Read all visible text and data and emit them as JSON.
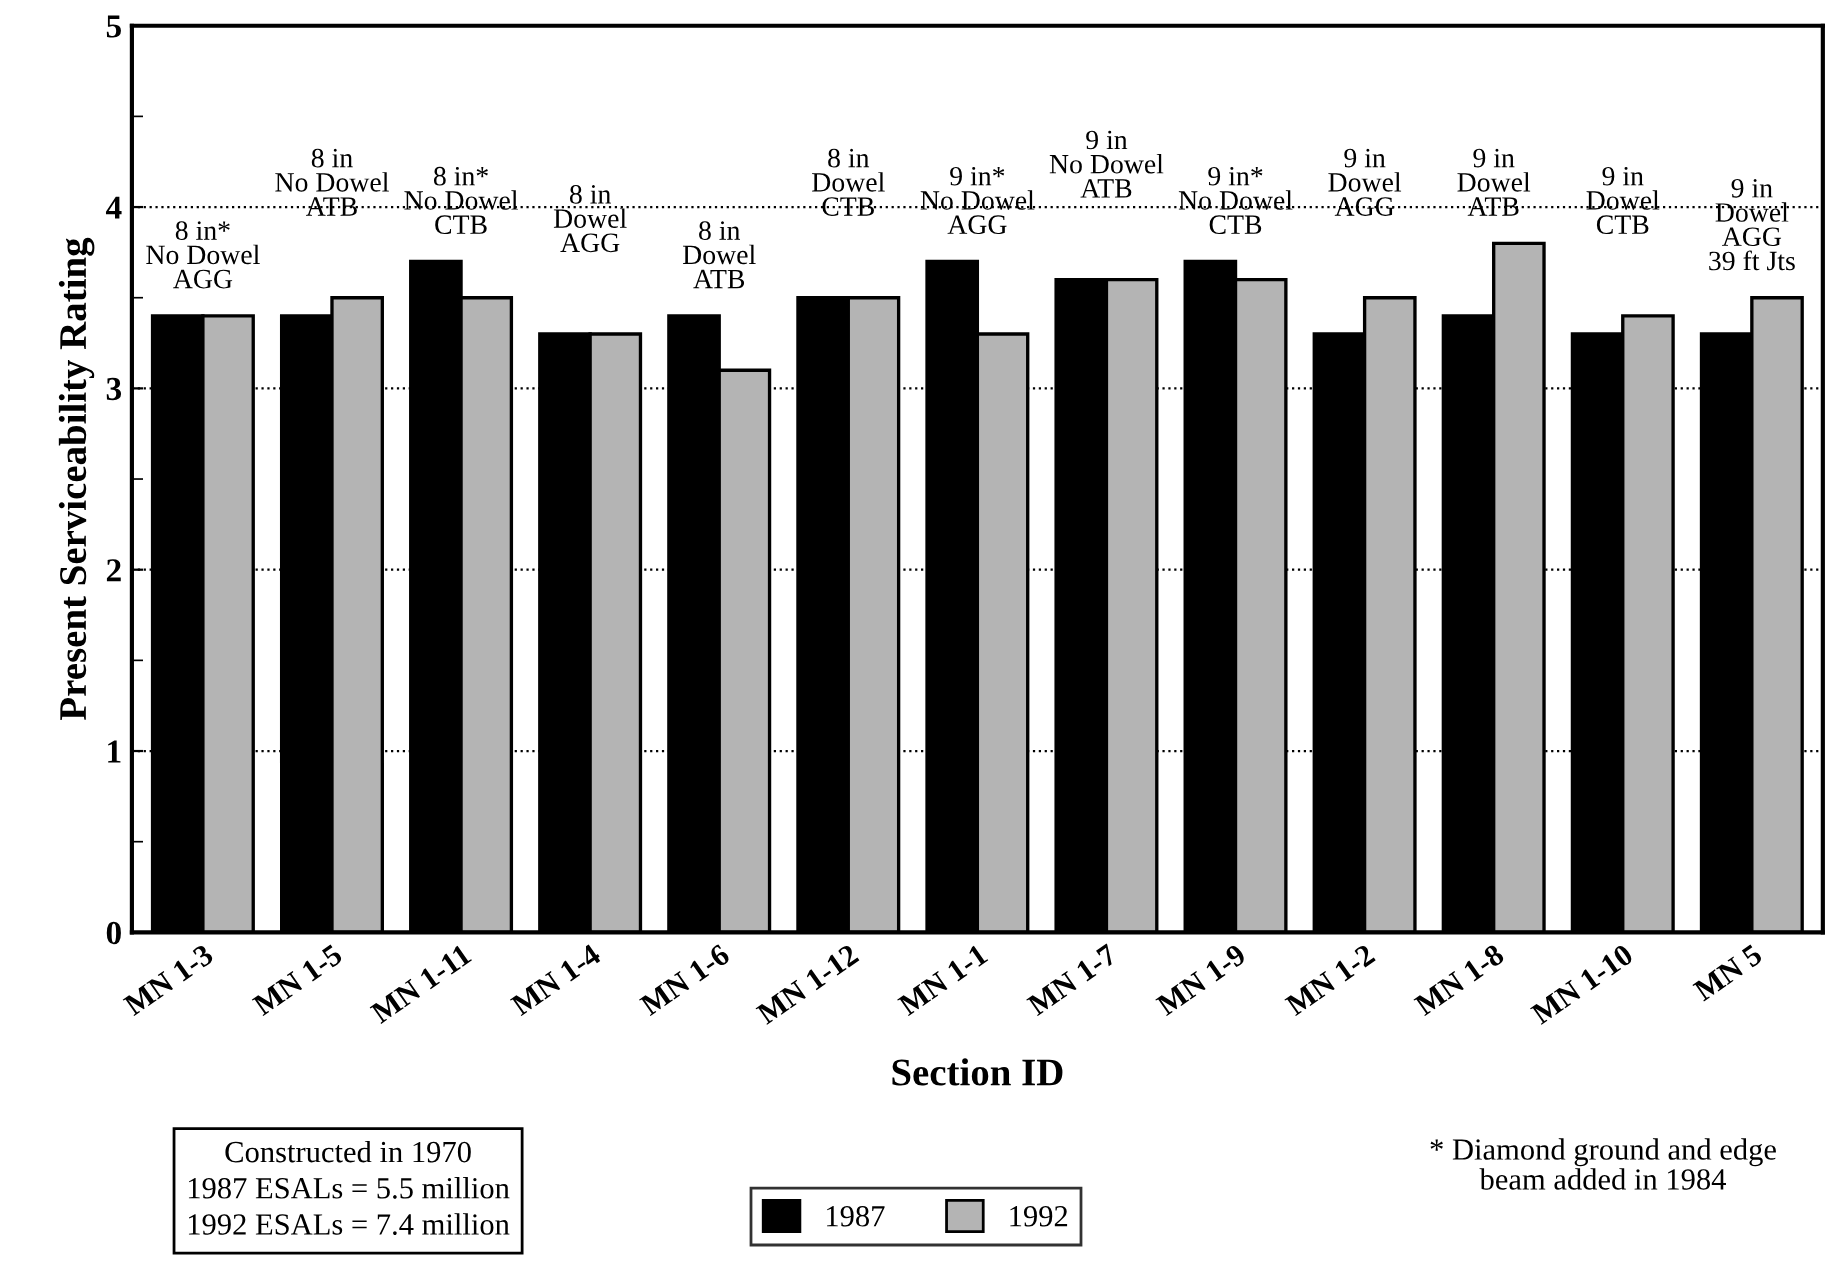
{
  "chart_data": {
    "type": "bar",
    "xlabel": "Section ID",
    "ylabel": "Present Serviceability Rating",
    "categories": [
      "MN 1-3",
      "MN 1-5",
      "MN 1-11",
      "MN 1-4",
      "MN 1-6",
      "MN 1-12",
      "MN 1-1",
      "MN 1-7",
      "MN 1-9",
      "MN 1-2",
      "MN 1-8",
      "MN 1-10",
      "MN 5"
    ],
    "series": [
      {
        "name": "1987",
        "color": "#000000",
        "values": [
          3.4,
          3.4,
          3.7,
          3.3,
          3.4,
          3.5,
          3.7,
          3.6,
          3.7,
          3.3,
          3.4,
          3.3,
          3.3
        ]
      },
      {
        "name": "1992",
        "color": "#b4b4b4",
        "values": [
          3.4,
          3.5,
          3.5,
          3.3,
          3.1,
          3.5,
          3.3,
          3.6,
          3.6,
          3.5,
          3.8,
          3.4,
          3.5
        ]
      }
    ],
    "ylim": [
      0,
      5
    ],
    "yticks": [
      0,
      {
        "value": 0.5,
        "label": null
      },
      1,
      {
        "value": 1.5,
        "label": null
      },
      2,
      {
        "value": 2.5,
        "label": null
      },
      3,
      {
        "value": 3.5,
        "label": null
      },
      4,
      {
        "value": 4.5,
        "label": null
      },
      5
    ],
    "grid": "y",
    "legend": "bottom",
    "annotations": [
      {
        "text": "8 in*\nNo Dowel\nAGG",
        "x": "MN 1-3",
        "y": 3.4
      },
      {
        "text": "8 in\nNo Dowel\nATB",
        "x": "MN 1-5",
        "y": 3.5
      },
      {
        "text": "8 in*\nNo Dowel\nCTB",
        "x": "MN 1-11",
        "y": 3.7
      },
      {
        "text": "8 in\nDowel\nAGG",
        "x": "MN 1-4",
        "y": 3.3
      },
      {
        "text": "8 in\nDowel\nATB",
        "x": "MN 1-6",
        "y": 3.4
      },
      {
        "text": "8 in\nDowel\nCTB",
        "x": "MN 1-12",
        "y": 3.5
      },
      {
        "text": "9 in*\nNo Dowel\nAGG",
        "x": "MN 1-1",
        "y": 3.7
      },
      {
        "text": "9 in\nNo Dowel\nATB",
        "x": "MN 1-7",
        "y": 3.6
      },
      {
        "text": "9 in*\nNo Dowel\nCTB",
        "x": "MN 1-9",
        "y": 3.7
      },
      {
        "text": "9 in\nDowel\nAGG",
        "x": "MN 1-2",
        "y": 3.5
      },
      {
        "text": "9 in\nDowel\nATB",
        "x": "MN 1-8",
        "y": 3.8
      },
      {
        "text": "9 in\nDowel\nCTB",
        "x": "MN 1-10",
        "y": 3.4
      },
      {
        "text": "9 in\nDowel\nAGG\n39 ft Jts",
        "x": "MN 5",
        "y": 3.5
      },
      "Constructed in 1970\n1987 ESALs = 5.5 million\n1992 ESALs = 7.4 million",
      "* Diamond ground and edge\nbeam added in 1984"
    ]
  }
}
